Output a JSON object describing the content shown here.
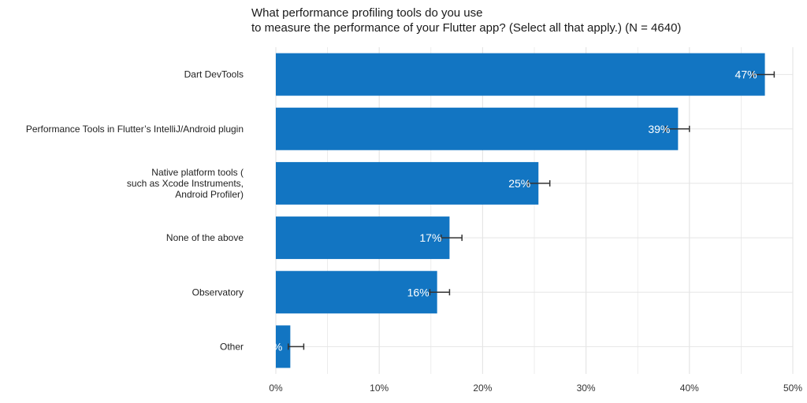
{
  "chart_data": {
    "type": "bar",
    "orientation": "horizontal",
    "title": "What performance profiling tools do you use\nto measure the performance of your Flutter app? (Select all that apply.) (N = 4640)",
    "categories": [
      "Dart DevTools",
      "Performance Tools in Flutter’s IntelliJ/Android plugin",
      "Native platform tools (\nsuch as Xcode Instruments,\nAndroid Profiler)",
      "None of the above",
      "Observatory",
      "Other"
    ],
    "values": [
      47.3,
      38.9,
      25.4,
      16.8,
      15.6,
      1.4
    ],
    "error_bars": [
      [
        46.1,
        48.2
      ],
      [
        37.7,
        40.0
      ],
      [
        24.4,
        26.5
      ],
      [
        16.0,
        18.0
      ],
      [
        14.9,
        16.8
      ],
      [
        1.2,
        2.7
      ]
    ],
    "data_labels": [
      "47%",
      "39%",
      "25%",
      "17%",
      "16%",
      "%"
    ],
    "xlim": [
      0,
      50
    ],
    "x_ticks": [
      "0%",
      "10%",
      "20%",
      "30%",
      "40%",
      "50%"
    ],
    "xlabel": "",
    "ylabel": "",
    "grid": true,
    "colors": {
      "bar": "#1275C2",
      "grid": "#E5E5E5",
      "error_bar": "#333333",
      "label": "#FFFFFF"
    }
  }
}
